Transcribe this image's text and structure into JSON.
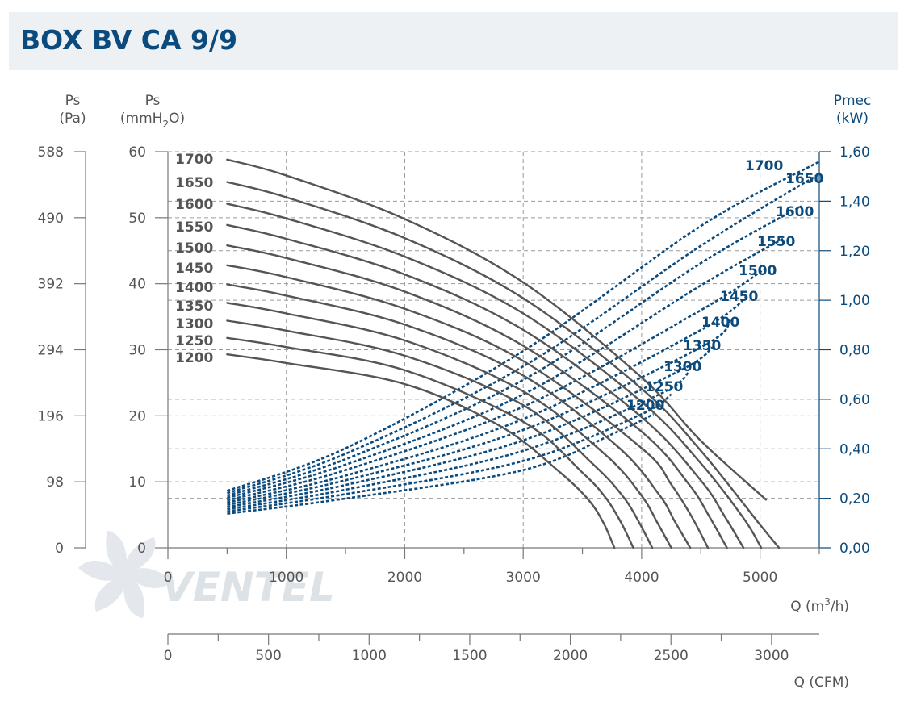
{
  "header": {
    "title": "BOX BV CA 9/9"
  },
  "axes": {
    "left_pa": {
      "name": "Ps",
      "unit": "(Pa)",
      "ticks": [
        "0",
        "98",
        "196",
        "294",
        "392",
        "490",
        "588"
      ]
    },
    "left_mm": {
      "name": "Ps",
      "unit_a": "(mmH",
      "unit_sub": "2",
      "unit_b": "O)",
      "ticks": [
        "0",
        "10",
        "20",
        "30",
        "40",
        "50",
        "60"
      ]
    },
    "right_kw": {
      "name": "Pmec",
      "unit": "(kW)",
      "ticks": [
        "0,00",
        "0,20",
        "0,40",
        "0,60",
        "0,80",
        "1,00",
        "1,20",
        "1,40",
        "1,60"
      ]
    },
    "x_m3h": {
      "label_a": "Q (m",
      "label_sup": "3",
      "label_b": "/h)",
      "ticks": [
        "0",
        "1000",
        "2000",
        "3000",
        "4000",
        "5000"
      ]
    },
    "x_cfm": {
      "label": "Q (CFM)",
      "ticks": [
        "0",
        "500",
        "1000",
        "1500",
        "2000",
        "2500",
        "3000"
      ]
    }
  },
  "watermark": {
    "text": "VENTEL"
  },
  "colors": {
    "title": "#0b4a7d",
    "pressure_curve": "#555555",
    "power_curve": "#0b4a7d",
    "grid": "#9a9a9a",
    "header_bg": "#eef1f4"
  },
  "chart_data": {
    "type": "line",
    "title": "BOX BV CA 9/9",
    "xlabel": "Q (m3/h)",
    "ylabel": "Ps (mmH2O)",
    "y2label": "Pmec (kW)",
    "xlim": [
      0,
      5500
    ],
    "ylim": [
      0,
      60
    ],
    "y2lim": [
      0,
      1.6
    ],
    "grid": true,
    "pressure_series": [
      {
        "name": "1700",
        "points": [
          [
            500,
            58.8
          ],
          [
            1000,
            56.4
          ],
          [
            2000,
            49.8
          ],
          [
            3000,
            40.2
          ],
          [
            4000,
            25.8
          ],
          [
            4500,
            16.2
          ],
          [
            5050,
            7.3
          ]
        ]
      },
      {
        "name": "1650",
        "points": [
          [
            500,
            55.4
          ],
          [
            1000,
            53.1
          ],
          [
            2000,
            46.9
          ],
          [
            3000,
            37.8
          ],
          [
            4000,
            24.1
          ],
          [
            4500,
            14.7
          ],
          [
            5000,
            3.5
          ],
          [
            5160,
            0.0
          ]
        ]
      },
      {
        "name": "1600",
        "points": [
          [
            500,
            52.1
          ],
          [
            1000,
            49.9
          ],
          [
            2000,
            44.1
          ],
          [
            3000,
            35.5
          ],
          [
            4000,
            22.1
          ],
          [
            4500,
            12.8
          ],
          [
            4860,
            4.5
          ],
          [
            5010,
            0.0
          ]
        ]
      },
      {
        "name": "1550",
        "points": [
          [
            500,
            48.9
          ],
          [
            1000,
            46.8
          ],
          [
            2000,
            41.4
          ],
          [
            3000,
            33.0
          ],
          [
            4000,
            19.8
          ],
          [
            4500,
            10.2
          ],
          [
            4700,
            4.8
          ],
          [
            4860,
            0.0
          ]
        ]
      },
      {
        "name": "1500",
        "points": [
          [
            500,
            45.8
          ],
          [
            1000,
            43.9
          ],
          [
            2000,
            38.8
          ],
          [
            3000,
            30.6
          ],
          [
            4000,
            17.6
          ],
          [
            4400,
            9.6
          ],
          [
            4570,
            4.8
          ],
          [
            4720,
            0.0
          ]
        ]
      },
      {
        "name": "1450",
        "points": [
          [
            500,
            42.8
          ],
          [
            1000,
            41.0
          ],
          [
            2000,
            36.2
          ],
          [
            3000,
            28.3
          ],
          [
            4000,
            15.1
          ],
          [
            4250,
            9.6
          ],
          [
            4420,
            4.8
          ],
          [
            4560,
            0.0
          ]
        ]
      },
      {
        "name": "1400",
        "points": [
          [
            500,
            39.9
          ],
          [
            1000,
            38.2
          ],
          [
            2000,
            33.8
          ],
          [
            3000,
            26.1
          ],
          [
            3800,
            15.3
          ],
          [
            4150,
            8.0
          ],
          [
            4280,
            4.0
          ],
          [
            4410,
            0.0
          ]
        ]
      },
      {
        "name": "1350",
        "points": [
          [
            500,
            37.1
          ],
          [
            1000,
            35.5
          ],
          [
            2000,
            31.4
          ],
          [
            3000,
            23.7
          ],
          [
            3700,
            14.0
          ],
          [
            4000,
            7.9
          ],
          [
            4130,
            3.9
          ],
          [
            4250,
            0.0
          ]
        ]
      },
      {
        "name": "1300",
        "points": [
          [
            500,
            34.4
          ],
          [
            1000,
            32.9
          ],
          [
            2000,
            29.1
          ],
          [
            3000,
            21.6
          ],
          [
            3600,
            12.5
          ],
          [
            3850,
            7.6
          ],
          [
            3980,
            3.8
          ],
          [
            4090,
            0.0
          ]
        ]
      },
      {
        "name": "1250",
        "points": [
          [
            500,
            31.8
          ],
          [
            1000,
            30.4
          ],
          [
            2000,
            26.9
          ],
          [
            3000,
            19.1
          ],
          [
            3500,
            11.4
          ],
          [
            3700,
            7.5
          ],
          [
            3830,
            3.7
          ],
          [
            3930,
            0.0
          ]
        ]
      },
      {
        "name": "1200",
        "points": [
          [
            500,
            29.3
          ],
          [
            1000,
            28.0
          ],
          [
            2000,
            24.8
          ],
          [
            2800,
            18.5
          ],
          [
            3300,
            11.6
          ],
          [
            3550,
            7.3
          ],
          [
            3680,
            3.7
          ],
          [
            3770,
            0.0
          ]
        ]
      }
    ],
    "power_series": [
      {
        "name": "1700",
        "points": [
          [
            500,
            0.23
          ],
          [
            1500,
            0.402
          ],
          [
            3000,
            0.795
          ],
          [
            4500,
            1.3
          ],
          [
            5500,
            1.56
          ]
        ]
      },
      {
        "name": "1650",
        "points": [
          [
            500,
            0.221
          ],
          [
            1500,
            0.38
          ],
          [
            3000,
            0.733
          ],
          [
            4500,
            1.22
          ],
          [
            5500,
            1.51
          ]
        ]
      },
      {
        "name": "1600",
        "points": [
          [
            500,
            0.211
          ],
          [
            1500,
            0.358
          ],
          [
            3000,
            0.678
          ],
          [
            4500,
            1.15
          ],
          [
            5350,
            1.38
          ]
        ]
      },
      {
        "name": "1550",
        "points": [
          [
            500,
            0.202
          ],
          [
            1500,
            0.336
          ],
          [
            3000,
            0.62
          ],
          [
            4500,
            1.06
          ],
          [
            5200,
            1.25
          ]
        ]
      },
      {
        "name": "1500",
        "points": [
          [
            500,
            0.192
          ],
          [
            1500,
            0.314
          ],
          [
            3000,
            0.57
          ],
          [
            4500,
            0.96
          ],
          [
            5050,
            1.13
          ]
        ]
      },
      {
        "name": "1450",
        "points": [
          [
            500,
            0.183
          ],
          [
            1500,
            0.292
          ],
          [
            3000,
            0.52
          ],
          [
            4500,
            0.88
          ],
          [
            4900,
            1.02
          ]
        ]
      },
      {
        "name": "1400",
        "points": [
          [
            500,
            0.174
          ],
          [
            1500,
            0.273
          ],
          [
            3000,
            0.476
          ],
          [
            4500,
            0.81
          ],
          [
            4750,
            0.92
          ]
        ]
      },
      {
        "name": "1350",
        "points": [
          [
            500,
            0.165
          ],
          [
            1500,
            0.254
          ],
          [
            3000,
            0.434
          ],
          [
            4300,
            0.71
          ],
          [
            4600,
            0.81
          ]
        ]
      },
      {
        "name": "1300",
        "points": [
          [
            500,
            0.156
          ],
          [
            1500,
            0.235
          ],
          [
            3000,
            0.392
          ],
          [
            4150,
            0.62
          ],
          [
            4400,
            0.71
          ]
        ]
      },
      {
        "name": "1250",
        "points": [
          [
            500,
            0.147
          ],
          [
            1500,
            0.217
          ],
          [
            3000,
            0.351
          ],
          [
            4000,
            0.54
          ],
          [
            4250,
            0.62
          ]
        ]
      },
      {
        "name": "1200",
        "points": [
          [
            500,
            0.138
          ],
          [
            1500,
            0.199
          ],
          [
            3000,
            0.314
          ],
          [
            3800,
            0.47
          ],
          [
            4100,
            0.54
          ]
        ]
      }
    ],
    "pressure_labels": [
      "1700",
      "1650",
      "1600",
      "1550",
      "1500",
      "1450",
      "1400",
      "1350",
      "1300",
      "1250",
      "1200"
    ],
    "power_labels": [
      "1700",
      "1650",
      "1600",
      "1550",
      "1500",
      "1450",
      "1400",
      "1350",
      "1300",
      "1250",
      "1200"
    ]
  }
}
